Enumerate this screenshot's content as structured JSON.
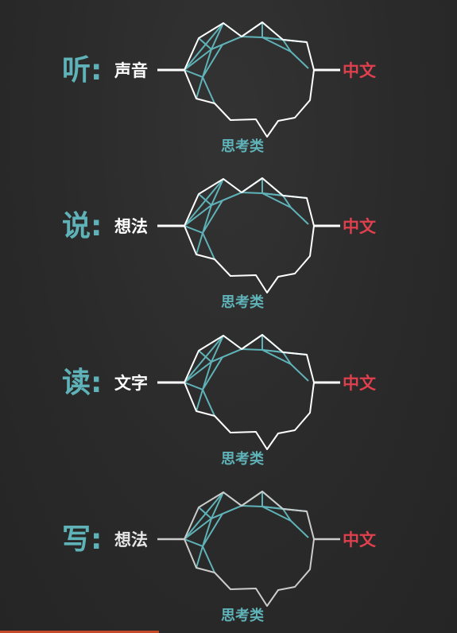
{
  "rows": [
    {
      "verb": "听:",
      "input": "声音",
      "output": "中文",
      "think": "思考类"
    },
    {
      "verb": "说:",
      "input": "想法",
      "output": "中文",
      "think": "思考类"
    },
    {
      "verb": "读:",
      "input": "文字",
      "output": "中文",
      "think": "思考类"
    },
    {
      "verb": "写:",
      "input": "想法",
      "output": "中文",
      "think": "思考类"
    }
  ],
  "colors": {
    "background": "#2a2a2a",
    "teal": "#5fb3b8",
    "red": "#e0404e",
    "white": "#ffffff"
  }
}
